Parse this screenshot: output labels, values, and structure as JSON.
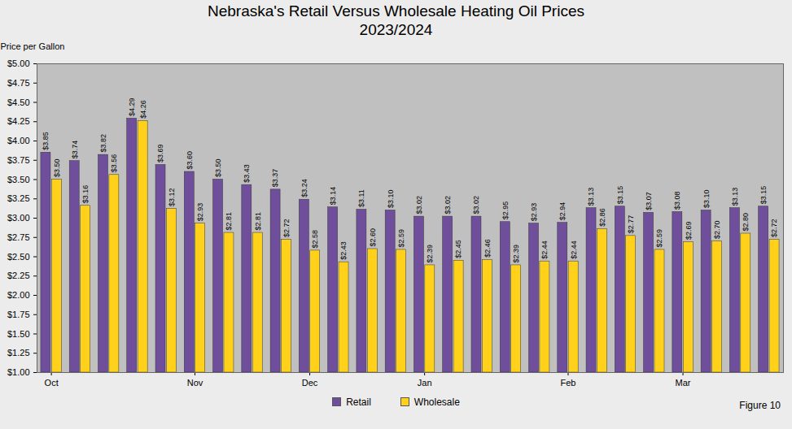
{
  "chart_data": {
    "type": "bar",
    "title": "Nebraska's Retail Versus Wholesale Heating Oil Prices",
    "subtitle": "2023/2024",
    "y_label": "Price per Gallon",
    "caption": "Figure 10",
    "categories": [
      "Oct",
      null,
      null,
      null,
      null,
      "Nov",
      null,
      null,
      null,
      "Dec",
      null,
      null,
      null,
      "Jan",
      null,
      null,
      null,
      null,
      "Feb",
      null,
      null,
      null,
      "Mar",
      null,
      null,
      null
    ],
    "series": [
      {
        "name": "Retail",
        "color": "#6f4f9b",
        "values": [
          3.85,
          3.74,
          3.82,
          4.29,
          3.69,
          3.6,
          3.5,
          3.43,
          3.37,
          3.24,
          3.14,
          3.11,
          3.1,
          3.02,
          3.02,
          3.02,
          2.95,
          2.93,
          2.94,
          3.13,
          3.15,
          3.07,
          3.08,
          3.1,
          3.13,
          3.15
        ],
        "value_labels": [
          "$3.85",
          "$3.74",
          "$3.82",
          "$4.29",
          "$3.69",
          "$3.60",
          "$3.50",
          "$3.43",
          "$3.37",
          "$3.24",
          "$3.14",
          "$3.11",
          "$3.10",
          "$3.02",
          "$3.02",
          "$3.02",
          "$2.95",
          "$2.93",
          "$2.94",
          "$3.13",
          "$3.15",
          "$3.07",
          "$3.08",
          "$3.10",
          "$3.13",
          "$3.15"
        ]
      },
      {
        "name": "Wholesale",
        "color": "#ffd11a",
        "values": [
          3.5,
          3.16,
          3.56,
          4.26,
          3.12,
          2.93,
          2.81,
          2.81,
          2.72,
          2.58,
          2.43,
          2.6,
          2.59,
          2.39,
          2.45,
          2.46,
          2.39,
          2.44,
          2.44,
          2.86,
          2.77,
          2.59,
          2.69,
          2.7,
          2.8,
          2.72
        ],
        "value_labels": [
          "$3.50",
          "$3.16",
          "$3.56",
          "$4.26",
          "$3.12",
          "$2.93",
          "$2.81",
          "$2.81",
          "$2.72",
          "$2.58",
          "$2.43",
          "$2.60",
          "$2.59",
          "$2.39",
          "$2.45",
          "$2.46",
          "$2.39",
          "$2.44",
          "$2.44",
          "$2.86",
          "$2.77",
          "$2.59",
          "$2.69",
          "$2.70",
          "$2.80",
          "$2.72"
        ]
      }
    ],
    "ylim": [
      1.0,
      5.0
    ],
    "yticks": [
      {
        "value": 1.0,
        "label": "$1.00"
      },
      {
        "value": 1.25,
        "label": "$1.25"
      },
      {
        "value": 1.5,
        "label": "$1.50"
      },
      {
        "value": 1.75,
        "label": "$1.75"
      },
      {
        "value": 2.0,
        "label": "$2.00"
      },
      {
        "value": 2.25,
        "label": "$2.25"
      },
      {
        "value": 2.5,
        "label": "$2.50"
      },
      {
        "value": 2.75,
        "label": "$2.75"
      },
      {
        "value": 3.0,
        "label": "$3.00"
      },
      {
        "value": 3.25,
        "label": "$3.25"
      },
      {
        "value": 3.5,
        "label": "$3.50"
      },
      {
        "value": 3.75,
        "label": "$3.75"
      },
      {
        "value": 4.0,
        "label": "$4.00"
      },
      {
        "value": 4.25,
        "label": "$4.25"
      },
      {
        "value": 4.5,
        "label": "$4.50"
      },
      {
        "value": 4.75,
        "label": "$4.75"
      },
      {
        "value": 5.0,
        "label": "$5.00"
      }
    ],
    "grid": false,
    "legend": "bottom",
    "data_labels": true
  }
}
